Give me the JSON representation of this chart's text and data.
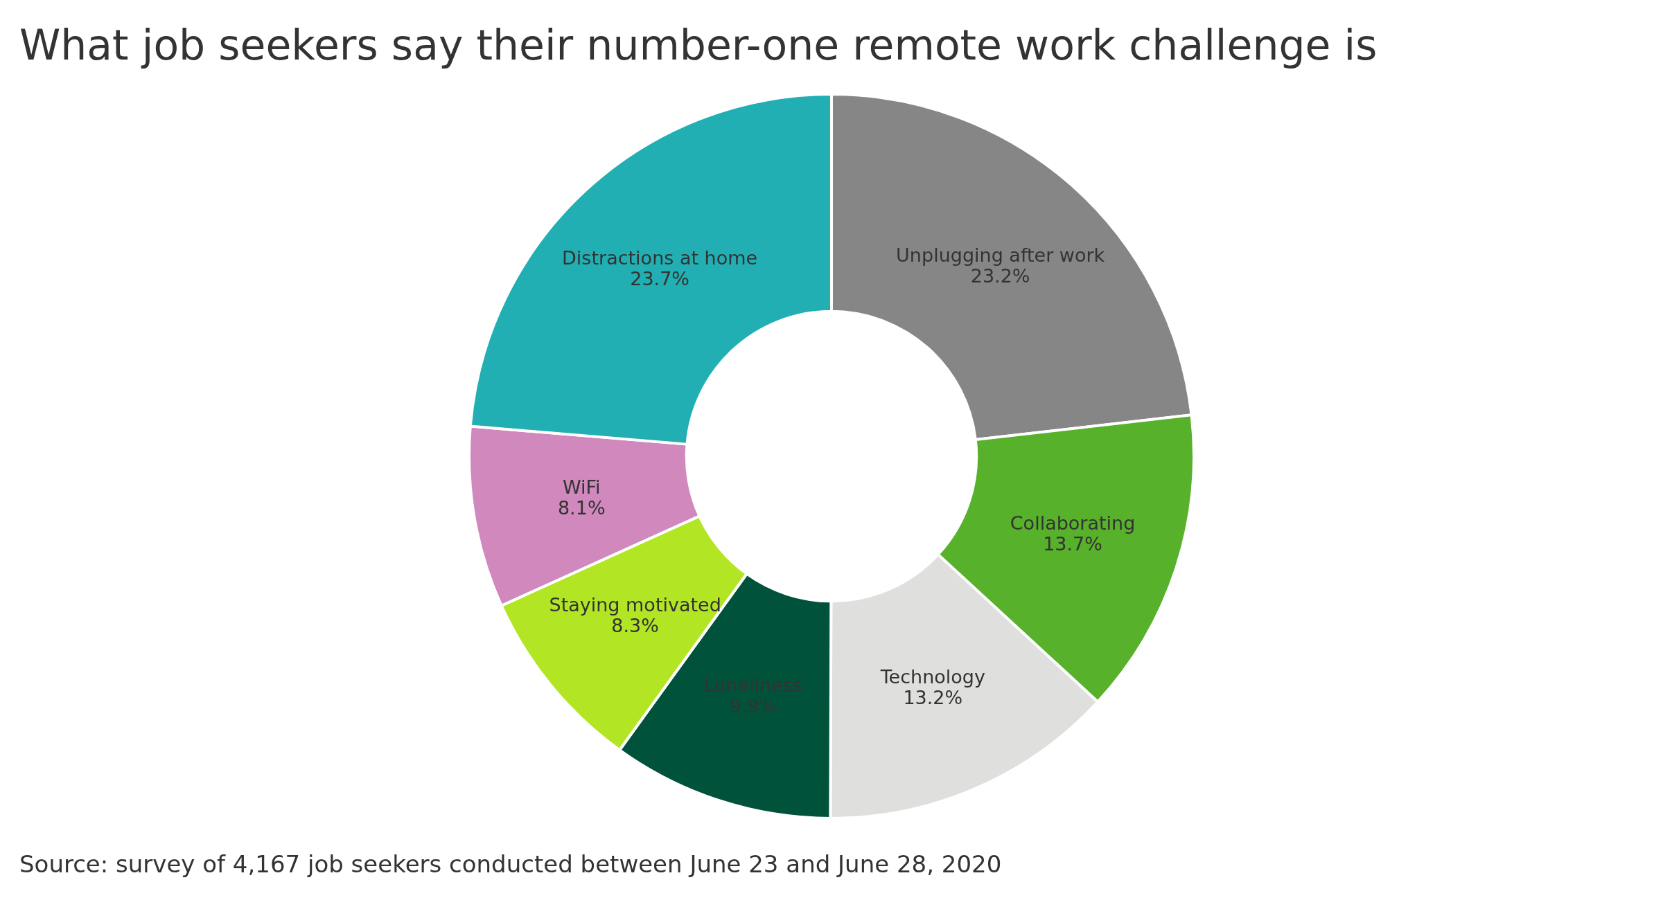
{
  "chart_data": {
    "type": "donut",
    "title": "What job seekers say their number-one remote work challenge is",
    "categories": [
      "Unplugging after work",
      "Collaborating",
      "Technology",
      "Loneliness",
      "Staying motivated",
      "WiFi",
      "Distractions at home"
    ],
    "values": [
      23.2,
      13.7,
      13.2,
      9.9,
      8.3,
      8.1,
      23.7
    ],
    "value_labels": [
      "23.2%",
      "13.7%",
      "13.2%",
      "9.9%",
      "8.3%",
      "8.1%",
      "23.7%"
    ],
    "colors": [
      "#868686",
      "#57b12a",
      "#dfe0dd",
      "#00533a",
      "#b2e524",
      "#d088bd",
      "#21afb3"
    ],
    "legend": false,
    "annotations": [
      "Source: survey of 4,167 job seekers conducted between June 23 and June 28, 2020"
    ]
  }
}
